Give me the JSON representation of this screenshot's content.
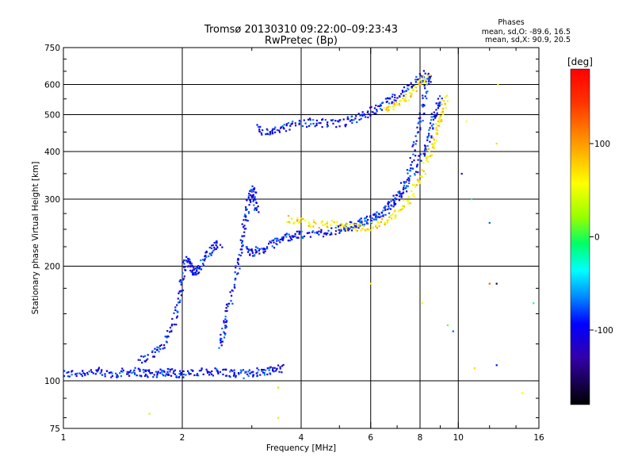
{
  "chart_data": {
    "type": "scatter",
    "title": "Tromsø 20130310 09:22:00–09:23:43",
    "subtitle": "RwPretec (Bp)",
    "xlabel": "Frequency [MHz]",
    "ylabel": "Stationary phase Virtual Height [km]",
    "x_scale": "log",
    "y_scale": "log",
    "xlim": [
      1,
      16
    ],
    "ylim": [
      75,
      750
    ],
    "x_ticks": [
      1,
      2,
      4,
      6,
      8,
      10,
      16
    ],
    "y_ticks": [
      75,
      100,
      200,
      300,
      400,
      500,
      600,
      750
    ],
    "x_gridlines": [
      2,
      4,
      6,
      8,
      10
    ],
    "y_gridlines": [
      100,
      200,
      300,
      400,
      500,
      600
    ],
    "grid": true,
    "legend": {
      "title": "Phases",
      "lines": [
        "mean, sd,O: -89.6, 16.5",
        "mean, sd,X:  90.9, 20.5"
      ],
      "placement": "top-right"
    },
    "colorbar": {
      "label": "[deg]",
      "min": -180,
      "max": 180,
      "ticks": [
        100,
        0,
        -100
      ],
      "colormap": "rainbow"
    },
    "series": [
      {
        "name": "O",
        "color_value": -100,
        "traces": [
          {
            "points": [
              [
                1.0,
                104
              ],
              [
                1.1,
                105
              ],
              [
                1.2,
                106
              ],
              [
                1.3,
                104
              ],
              [
                1.4,
                105
              ],
              [
                1.5,
                106
              ],
              [
                1.6,
                105
              ],
              [
                1.7,
                104
              ],
              [
                1.8,
                106
              ],
              [
                1.9,
                105
              ],
              [
                2.0,
                104
              ],
              [
                2.2,
                105
              ],
              [
                2.4,
                106
              ],
              [
                2.6,
                105
              ],
              [
                2.8,
                104
              ],
              [
                3.0,
                105
              ],
              [
                3.2,
                106
              ],
              [
                3.4,
                107
              ],
              [
                3.6,
                108
              ]
            ]
          },
          {
            "points": [
              [
                1.55,
                113
              ],
              [
                1.7,
                118
              ],
              [
                1.8,
                125
              ],
              [
                1.9,
                140
              ],
              [
                1.95,
                160
              ],
              [
                2.0,
                185
              ],
              [
                2.05,
                210
              ],
              [
                2.1,
                200
              ],
              [
                2.15,
                190
              ],
              [
                2.2,
                195
              ],
              [
                2.3,
                215
              ],
              [
                2.4,
                225
              ],
              [
                2.5,
                230
              ]
            ]
          },
          {
            "points": [
              [
                2.5,
                125
              ],
              [
                2.55,
                135
              ],
              [
                2.6,
                150
              ],
              [
                2.7,
                180
              ],
              [
                2.8,
                210
              ],
              [
                2.85,
                240
              ],
              [
                2.9,
                270
              ],
              [
                2.95,
                300
              ],
              [
                3.0,
                320
              ],
              [
                3.05,
                300
              ],
              [
                3.1,
                280
              ]
            ]
          },
          {
            "points": [
              [
                2.9,
                220
              ],
              [
                3.0,
                218
              ],
              [
                3.2,
                220
              ],
              [
                3.4,
                230
              ],
              [
                3.6,
                238
              ],
              [
                3.8,
                240
              ],
              [
                4.0,
                242
              ],
              [
                4.4,
                244
              ],
              [
                4.8,
                248
              ],
              [
                5.2,
                252
              ],
              [
                5.6,
                258
              ],
              [
                6.0,
                265
              ],
              [
                6.4,
                275
              ],
              [
                6.8,
                290
              ],
              [
                7.2,
                320
              ],
              [
                7.6,
                370
              ],
              [
                7.9,
                440
              ],
              [
                8.1,
                520
              ],
              [
                8.3,
                600
              ],
              [
                8.5,
                630
              ]
            ]
          },
          {
            "points": [
              [
                3.1,
                460
              ],
              [
                3.3,
                445
              ],
              [
                3.5,
                455
              ],
              [
                3.8,
                470
              ],
              [
                4.2,
                478
              ],
              [
                4.6,
                475
              ],
              [
                5.0,
                472
              ],
              [
                5.4,
                485
              ],
              [
                5.8,
                500
              ],
              [
                6.2,
                520
              ],
              [
                6.6,
                540
              ],
              [
                7.0,
                560
              ],
              [
                7.5,
                590
              ],
              [
                8.0,
                620
              ],
              [
                8.3,
                640
              ]
            ]
          },
          {
            "points": [
              [
                5.0,
                250
              ],
              [
                5.5,
                258
              ],
              [
                6.0,
                265
              ],
              [
                6.5,
                280
              ],
              [
                7.0,
                300
              ],
              [
                7.5,
                330
              ],
              [
                8.0,
                380
              ],
              [
                8.4,
                430
              ],
              [
                8.6,
                480
              ],
              [
                8.8,
                520
              ],
              [
                9.0,
                550
              ]
            ]
          }
        ]
      },
      {
        "name": "X",
        "color_value": 100,
        "traces": [
          {
            "points": [
              [
                3.7,
                265
              ],
              [
                4.0,
                262
              ],
              [
                4.5,
                258
              ],
              [
                5.0,
                255
              ],
              [
                5.5,
                252
              ],
              [
                6.0,
                255
              ],
              [
                6.5,
                262
              ],
              [
                7.0,
                275
              ],
              [
                7.5,
                300
              ],
              [
                8.0,
                340
              ],
              [
                8.4,
                390
              ],
              [
                8.7,
                430
              ],
              [
                8.9,
                470
              ],
              [
                9.1,
                510
              ],
              [
                9.3,
                560
              ]
            ]
          },
          {
            "points": [
              [
                6.5,
                520
              ],
              [
                7.0,
                535
              ],
              [
                7.5,
                560
              ],
              [
                8.0,
                600
              ],
              [
                8.4,
                630
              ]
            ]
          }
        ]
      }
    ],
    "scattered_points": [
      {
        "f": 1.65,
        "h": 82,
        "c": 60
      },
      {
        "f": 3.5,
        "h": 80,
        "c": 60
      },
      {
        "f": 3.5,
        "h": 96,
        "c": 40
      },
      {
        "f": 6.0,
        "h": 180,
        "c": 100
      },
      {
        "f": 8.1,
        "h": 160,
        "c": 100
      },
      {
        "f": 9.4,
        "h": 140,
        "c": 20
      },
      {
        "f": 9.7,
        "h": 135,
        "c": -80
      },
      {
        "f": 10.2,
        "h": 350,
        "c": -120
      },
      {
        "f": 10.5,
        "h": 480,
        "c": 100
      },
      {
        "f": 10.8,
        "h": 300,
        "c": -30
      },
      {
        "f": 11.0,
        "h": 108,
        "c": 110
      },
      {
        "f": 12.0,
        "h": 260,
        "c": -80
      },
      {
        "f": 12.0,
        "h": 180,
        "c": 150
      },
      {
        "f": 12.5,
        "h": 420,
        "c": 110
      },
      {
        "f": 12.5,
        "h": 110,
        "c": -100
      },
      {
        "f": 12.5,
        "h": 180,
        "c": -160
      },
      {
        "f": 12.6,
        "h": 600,
        "c": 100
      },
      {
        "f": 14.5,
        "h": 93,
        "c": 100
      },
      {
        "f": 15.5,
        "h": 160,
        "c": -20
      }
    ]
  }
}
